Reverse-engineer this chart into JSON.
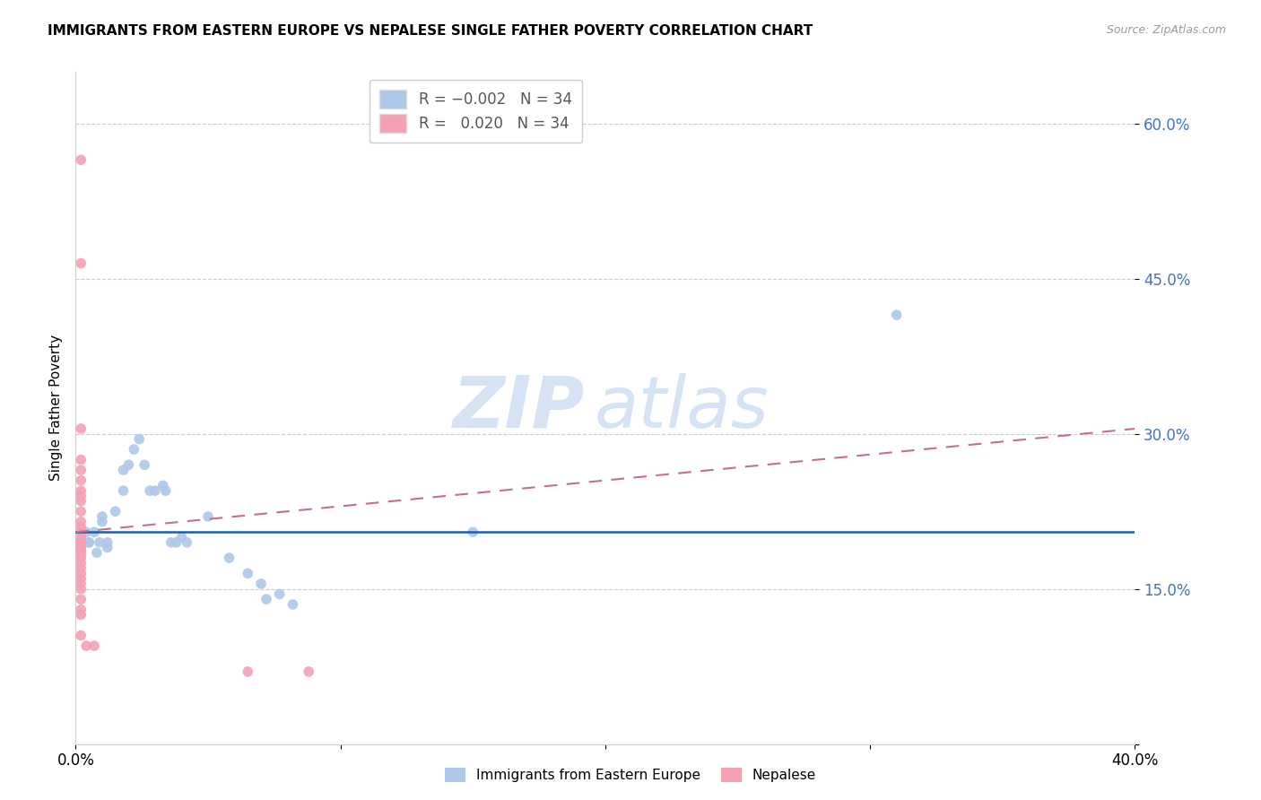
{
  "title": "IMMIGRANTS FROM EASTERN EUROPE VS NEPALESE SINGLE FATHER POVERTY CORRELATION CHART",
  "source": "Source: ZipAtlas.com",
  "ylabel": "Single Father Poverty",
  "yticks": [
    0.0,
    0.15,
    0.3,
    0.45,
    0.6
  ],
  "ytick_labels": [
    "",
    "15.0%",
    "30.0%",
    "45.0%",
    "60.0%"
  ],
  "xlim": [
    0.0,
    0.4
  ],
  "ylim": [
    0.0,
    0.65
  ],
  "blue_color": "#adc8e8",
  "pink_color": "#f4a0b5",
  "blue_line_color": "#1a5fa8",
  "pink_line_color": "#c4708a",
  "watermark_ZIP": "ZIP",
  "watermark_atlas": "atlas",
  "blue_scatter": [
    [
      0.004,
      0.205
    ],
    [
      0.005,
      0.195
    ],
    [
      0.005,
      0.195
    ],
    [
      0.007,
      0.205
    ],
    [
      0.008,
      0.185
    ],
    [
      0.009,
      0.195
    ],
    [
      0.01,
      0.215
    ],
    [
      0.01,
      0.22
    ],
    [
      0.012,
      0.195
    ],
    [
      0.012,
      0.19
    ],
    [
      0.015,
      0.225
    ],
    [
      0.018,
      0.245
    ],
    [
      0.018,
      0.265
    ],
    [
      0.02,
      0.27
    ],
    [
      0.022,
      0.285
    ],
    [
      0.024,
      0.295
    ],
    [
      0.026,
      0.27
    ],
    [
      0.028,
      0.245
    ],
    [
      0.03,
      0.245
    ],
    [
      0.033,
      0.25
    ],
    [
      0.034,
      0.245
    ],
    [
      0.036,
      0.195
    ],
    [
      0.038,
      0.195
    ],
    [
      0.04,
      0.2
    ],
    [
      0.042,
      0.195
    ],
    [
      0.05,
      0.22
    ],
    [
      0.058,
      0.18
    ],
    [
      0.065,
      0.165
    ],
    [
      0.07,
      0.155
    ],
    [
      0.072,
      0.14
    ],
    [
      0.077,
      0.145
    ],
    [
      0.082,
      0.135
    ],
    [
      0.15,
      0.205
    ],
    [
      0.31,
      0.415
    ]
  ],
  "pink_scatter": [
    [
      0.002,
      0.565
    ],
    [
      0.002,
      0.465
    ],
    [
      0.002,
      0.305
    ],
    [
      0.002,
      0.275
    ],
    [
      0.002,
      0.265
    ],
    [
      0.002,
      0.255
    ],
    [
      0.002,
      0.245
    ],
    [
      0.002,
      0.24
    ],
    [
      0.002,
      0.235
    ],
    [
      0.002,
      0.225
    ],
    [
      0.002,
      0.215
    ],
    [
      0.002,
      0.21
    ],
    [
      0.002,
      0.205
    ],
    [
      0.002,
      0.2
    ],
    [
      0.002,
      0.197
    ],
    [
      0.002,
      0.194
    ],
    [
      0.002,
      0.19
    ],
    [
      0.002,
      0.187
    ],
    [
      0.002,
      0.184
    ],
    [
      0.002,
      0.18
    ],
    [
      0.002,
      0.175
    ],
    [
      0.002,
      0.17
    ],
    [
      0.002,
      0.165
    ],
    [
      0.002,
      0.16
    ],
    [
      0.002,
      0.155
    ],
    [
      0.002,
      0.15
    ],
    [
      0.002,
      0.14
    ],
    [
      0.002,
      0.13
    ],
    [
      0.002,
      0.125
    ],
    [
      0.002,
      0.105
    ],
    [
      0.004,
      0.095
    ],
    [
      0.007,
      0.095
    ],
    [
      0.065,
      0.07
    ],
    [
      0.088,
      0.07
    ]
  ],
  "blue_line_y0": 0.205,
  "blue_line_y1": 0.205,
  "pink_line_x0": 0.0,
  "pink_line_y0": 0.205,
  "pink_line_x1": 0.4,
  "pink_line_y1": 0.305
}
